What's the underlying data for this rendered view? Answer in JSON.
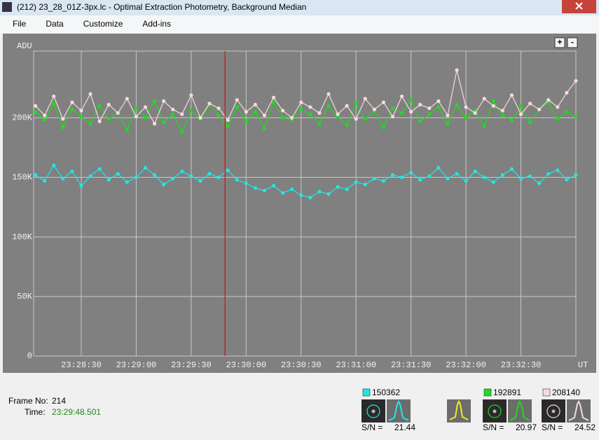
{
  "window": {
    "title": "(212) 23_28_01Z-3px.lc - Optimal Extraction Photometry, Background Median"
  },
  "menu": [
    "File",
    "Data",
    "Customize",
    "Add-ins"
  ],
  "zoom": {
    "in": "+",
    "out": "-"
  },
  "chart_data": {
    "type": "line",
    "y_label": "ADU",
    "x_label": "UT",
    "xlim": [
      84484,
      84780
    ],
    "ylim": [
      0,
      256000
    ],
    "xticks": [
      {
        "value": 84510,
        "label": "23:28:30"
      },
      {
        "value": 84540,
        "label": "23:29:00"
      },
      {
        "value": 84570,
        "label": "23:29:30"
      },
      {
        "value": 84600,
        "label": "23:30:00"
      },
      {
        "value": 84630,
        "label": "23:30:30"
      },
      {
        "value": 84660,
        "label": "23:31:00"
      },
      {
        "value": 84690,
        "label": "23:31:30"
      },
      {
        "value": 84720,
        "label": "23:32:00"
      },
      {
        "value": 84750,
        "label": "23:32:30"
      }
    ],
    "yticks": [
      0,
      {
        "value": 50000,
        "label": "50K"
      },
      {
        "value": 100000,
        "label": "100K"
      },
      {
        "value": 150000,
        "label": "150K"
      },
      {
        "value": 200000,
        "label": "200K"
      }
    ],
    "grid": true,
    "cursor_x": 84588.501,
    "x": [
      84485,
      84490,
      84495,
      84500,
      84505,
      84510,
      84515,
      84520,
      84525,
      84530,
      84535,
      84540,
      84545,
      84550,
      84555,
      84560,
      84565,
      84570,
      84575,
      84580,
      84585,
      84590,
      84595,
      84600,
      84605,
      84610,
      84615,
      84620,
      84625,
      84630,
      84635,
      84640,
      84645,
      84650,
      84655,
      84660,
      84665,
      84670,
      84675,
      84680,
      84685,
      84690,
      84695,
      84700,
      84705,
      84710,
      84715,
      84720,
      84725,
      84730,
      84735,
      84740,
      84745,
      84750,
      84755,
      84760,
      84765,
      84770,
      84775,
      84780
    ],
    "series": [
      {
        "name": "150362",
        "color": "#22e6e6",
        "snr": 21.44,
        "values": [
          152000,
          147000,
          160000,
          149000,
          155000,
          143000,
          151000,
          157000,
          148000,
          153000,
          146000,
          150000,
          158000,
          152000,
          144000,
          149000,
          155000,
          151000,
          147000,
          153000,
          150000,
          156000,
          148000,
          145000,
          141000,
          139000,
          143000,
          137000,
          140000,
          135000,
          133000,
          138000,
          136000,
          142000,
          140000,
          146000,
          144000,
          149000,
          147000,
          152000,
          150000,
          154000,
          148000,
          151000,
          158000,
          149000,
          153000,
          147000,
          155000,
          150000,
          146000,
          152000,
          157000,
          149000,
          151000,
          145000,
          153000,
          156000,
          148000,
          152000
        ]
      },
      {
        "name": "192891",
        "color": "#1edc1e",
        "snr": 20.97,
        "values": [
          205000,
          198000,
          212000,
          192000,
          207000,
          201000,
          195000,
          210000,
          199000,
          204000,
          190000,
          208000,
          200000,
          214000,
          196000,
          203000,
          188000,
          206000,
          199000,
          211000,
          202000,
          193000,
          209000,
          197000,
          205000,
          191000,
          213000,
          200000,
          198000,
          207000,
          203000,
          195000,
          210000,
          201000,
          194000,
          212000,
          199000,
          206000,
          192000,
          208000,
          204000,
          215000,
          197000,
          203000,
          209000,
          195000,
          211000,
          200000,
          206000,
          193000,
          214000,
          202000,
          198000,
          210000,
          196000,
          207000,
          213000,
          199000,
          205000,
          201000
        ]
      },
      {
        "name": "208140",
        "color": "#f6dada",
        "snr": 24.52,
        "values": [
          210000,
          202000,
          218000,
          199000,
          213000,
          206000,
          220000,
          197000,
          211000,
          204000,
          216000,
          201000,
          209000,
          195000,
          214000,
          207000,
          203000,
          219000,
          200000,
          212000,
          208000,
          198000,
          215000,
          205000,
          211000,
          202000,
          217000,
          206000,
          200000,
          213000,
          209000,
          204000,
          220000,
          203000,
          210000,
          199000,
          216000,
          207000,
          213000,
          201000,
          218000,
          205000,
          211000,
          208000,
          214000,
          202000,
          240000,
          209000,
          204000,
          216000,
          210000,
          206000,
          219000,
          203000,
          212000,
          207000,
          215000,
          209000,
          221000,
          231000
        ]
      }
    ]
  },
  "status": {
    "frame_label": "Frame No:",
    "frame": 214,
    "time_label": "Time:",
    "time": "23:29:48.501",
    "sn_label": "S/N ="
  }
}
